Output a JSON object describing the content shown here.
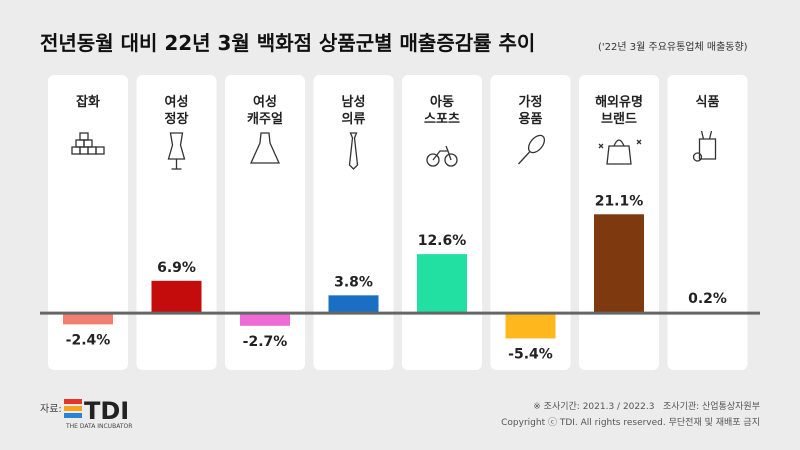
{
  "chart_data": {
    "type": "bar",
    "title": "전년동월 대비 22년 3월 백화점 상품군별 매출증감률 추이",
    "subtitle": "('22년 3월 주요유통업체 매출동향)",
    "categories": [
      "잡화",
      "여성\n정장",
      "여성\n캐주얼",
      "남성\n의류",
      "아동\n스포츠",
      "가정\n용품",
      "해외유명\n브랜드",
      "식품"
    ],
    "values": [
      -2.4,
      6.9,
      -2.7,
      3.8,
      12.6,
      -5.4,
      21.1,
      0.2
    ],
    "value_labels": [
      "-2.4%",
      "6.9%",
      "-2.7%",
      "3.8%",
      "12.6%",
      "-5.4%",
      "21.1%",
      "0.2%"
    ],
    "colors": [
      "#f07f72",
      "#c40c0c",
      "#f06ad6",
      "#1a6fc4",
      "#22e0a2",
      "#ffb71e",
      "#7e3a0e",
      "#e8a47a"
    ],
    "ylim": [
      -10,
      25
    ]
  },
  "footer": {
    "source_label": "자료:",
    "logo": "TDI",
    "logo_sub": "THE DATA INCUBATOR",
    "note": "※ 조사기간: 2021.3 / 2022.3   조사기관: 산업통상자원부",
    "copyright": "Copyright ⓒ TDI. All rights reserved. 무단전재 및 재배포 금지"
  }
}
